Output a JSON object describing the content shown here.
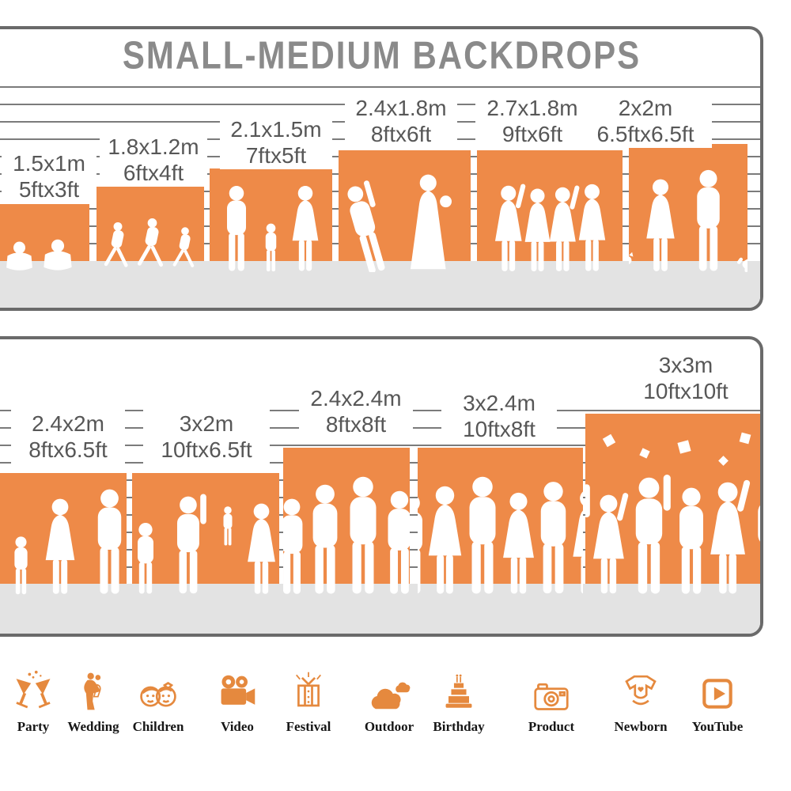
{
  "title": "SMALL-MEDIUM BACKDROPS",
  "panels": [
    {
      "id": "small-medium-row",
      "blocks": [
        {
          "metric": "1.5x1m",
          "imperial": "5ftx3ft",
          "scene": "children-reading"
        },
        {
          "metric": "1.8x1.2m",
          "imperial": "6ftx4ft",
          "scene": "children-running"
        },
        {
          "metric": "2.1x1.5m",
          "imperial": "7ftx5ft",
          "scene": "family-walking"
        },
        {
          "metric": "2.4x1.8m",
          "imperial": "8ftx6ft",
          "scene": "wedding-couple"
        },
        {
          "metric": "2.7x1.8m",
          "imperial": "9ftx6ft",
          "scene": "dancing-women"
        },
        {
          "metric": "2x2m",
          "imperial": "6.5ftx6.5ft",
          "scene": "couple-with-dogs"
        }
      ]
    },
    {
      "id": "medium-large-row",
      "blocks": [
        {
          "metric": "2.4x2m",
          "imperial": "8ftx6.5ft",
          "scene": "family-with-kids"
        },
        {
          "metric": "3x2m",
          "imperial": "10ftx6.5ft",
          "scene": "family-tossing-child"
        },
        {
          "metric": "2.4x2.4m",
          "imperial": "8ftx8ft",
          "scene": "standing-group"
        },
        {
          "metric": "3x2.4m",
          "imperial": "10ftx8ft",
          "scene": "party-crowd"
        },
        {
          "metric": "3x3m",
          "imperial": "10ftx10ft",
          "scene": "graduation-crowd"
        }
      ]
    }
  ],
  "categories": [
    {
      "label": "Party",
      "icon": "party-icon"
    },
    {
      "label": "Wedding",
      "icon": "wedding-icon"
    },
    {
      "label": "Children",
      "icon": "children-icon"
    },
    {
      "label": "Video",
      "icon": "video-icon"
    },
    {
      "label": "Festival",
      "icon": "festival-icon"
    },
    {
      "label": "Outdoor",
      "icon": "outdoor-icon"
    },
    {
      "label": "Birthday",
      "icon": "birthday-icon"
    },
    {
      "label": "Product",
      "icon": "product-icon"
    },
    {
      "label": "Newborn",
      "icon": "newborn-icon"
    },
    {
      "label": "YouTube",
      "icon": "youtube-icon"
    }
  ],
  "colors": {
    "backdrop_orange": "#EE8A48",
    "floor_gray": "#E3E3E3",
    "panel_border_gray": "#6A6A6A",
    "ruled_line_gray": "#7B7B7B",
    "size_label_gray": "#575757",
    "title_gray": "#8A8A8A",
    "icon_orange": "#E5893E",
    "category_label_black": "#161616",
    "silhouette_white": "#FFFFFF"
  }
}
